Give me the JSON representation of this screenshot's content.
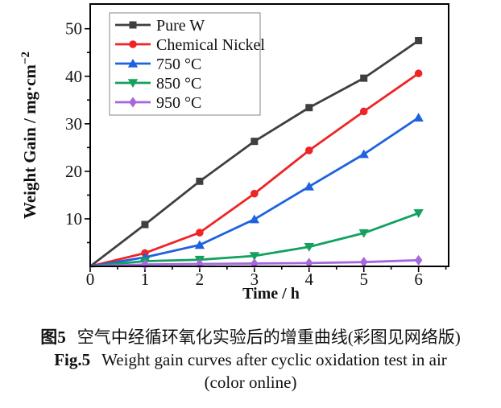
{
  "figure": {
    "caption_cn_label": "图5",
    "caption_cn_text": "空气中经循环氧化实验后的增重曲线(彩图见网络版)",
    "caption_en_label": "Fig.5",
    "caption_en_text": "Weight gain curves after cyclic oxidation test in air",
    "caption_note": "(color online)"
  },
  "colors": {
    "axis": "#000000",
    "text": "#111111",
    "legend_border": "#9a9a9a",
    "background": "#ffffff"
  },
  "chart_data": {
    "type": "line",
    "title": "",
    "xlabel": "Time / h",
    "ylabel": "Weight Gain / mg·cm⁻²",
    "x": [
      0,
      1,
      2,
      3,
      4,
      5,
      6
    ],
    "xlim": [
      0,
      6.55
    ],
    "ylim": [
      0,
      55.2
    ],
    "x_major_ticks": [
      0,
      1,
      2,
      3,
      4,
      5,
      6
    ],
    "x_minor_ticks": [
      0.5,
      1.5,
      2.5,
      3.5,
      4.5,
      5.5,
      6.5
    ],
    "y_major_ticks": [
      10,
      20,
      30,
      40,
      50
    ],
    "y_minor_ticks": [
      5,
      15,
      25,
      35,
      45
    ],
    "grid": false,
    "legend_position": "top-left",
    "series": [
      {
        "name": "Pure W",
        "marker": "square",
        "color": "#3f3f3f",
        "values": [
          0,
          8.8,
          17.9,
          26.3,
          33.4,
          39.6,
          47.5
        ]
      },
      {
        "name": "Chemical Nickel",
        "marker": "circle",
        "color": "#ee2426",
        "values": [
          0,
          2.8,
          7.1,
          15.3,
          24.4,
          32.6,
          40.6
        ]
      },
      {
        "name": "750 °C",
        "marker": "triangle-up",
        "color": "#1e62e0",
        "values": [
          0,
          1.9,
          4.5,
          9.9,
          16.8,
          23.6,
          31.3
        ]
      },
      {
        "name": "850 °C",
        "marker": "triangle-down",
        "color": "#13a15e",
        "values": [
          0,
          1.1,
          1.4,
          2.2,
          4.1,
          7.0,
          11.2
        ]
      },
      {
        "name": "950 °C",
        "marker": "diamond",
        "color": "#a667dc",
        "values": [
          0,
          0.4,
          0.5,
          0.6,
          0.7,
          0.9,
          1.3
        ]
      }
    ]
  }
}
